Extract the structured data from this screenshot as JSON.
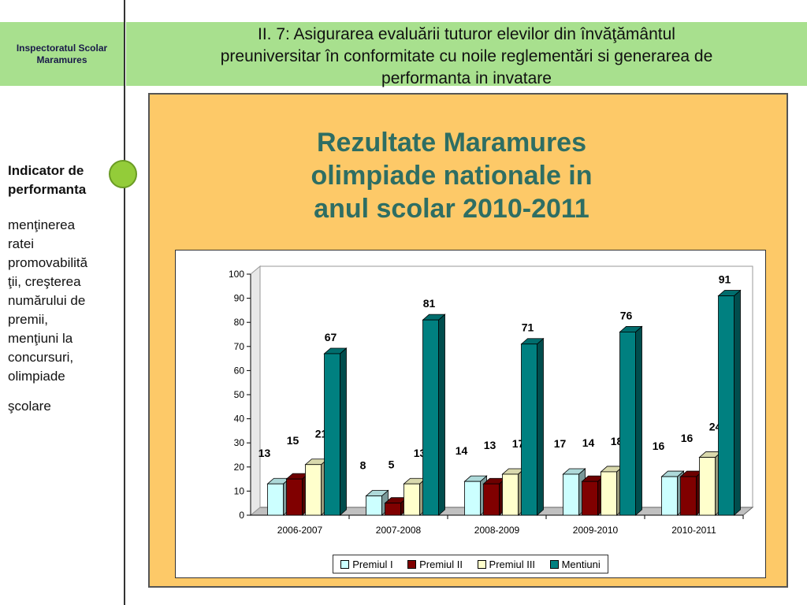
{
  "logo": {
    "line1": "Inspectoratul Scolar",
    "line2": "Maramures"
  },
  "header": {
    "line1": "II. 7: Asigurarea evaluării tuturor elevilor din învăţământul",
    "line2": "preuniversitar în conformitate cu noile reglementări si generarea de",
    "line3": "performanta in invatare"
  },
  "sidebar": {
    "heading_line1": "Indicator de",
    "heading_line2": "performanta",
    "body_lines": [
      "menţinerea",
      "ratei",
      "promovabilită",
      "ţii, creşterea",
      "numărului de",
      "premii,",
      "menţiuni la",
      "concursuri,",
      "olimpiade",
      "şcolare"
    ]
  },
  "panel_title": {
    "line1": "Rezultate Maramures",
    "line2": "olimpiade nationale in",
    "line3": "anul scolar 2010-2011"
  },
  "chart_data": {
    "type": "bar",
    "title": "",
    "categories": [
      "2006-2007",
      "2007-2008",
      "2008-2009",
      "2009-2010",
      "2010-2011"
    ],
    "series": [
      {
        "name": "Premiul I",
        "values": [
          13,
          8,
          14,
          17,
          16
        ],
        "color": "#ccffff"
      },
      {
        "name": "Premiul II",
        "values": [
          15,
          5,
          13,
          14,
          16
        ],
        "color": "#800000"
      },
      {
        "name": "Premiul III",
        "values": [
          21,
          13,
          17,
          18,
          24
        ],
        "color": "#ffffcc"
      },
      {
        "name": "Mentiuni",
        "values": [
          67,
          81,
          71,
          76,
          91
        ],
        "color": "#008080"
      }
    ],
    "ylim": [
      0,
      100
    ],
    "yticks": [
      "0",
      "10",
      "20",
      "30",
      "40",
      "50",
      "60",
      "70",
      "80",
      "90",
      "100"
    ],
    "grid": false,
    "legend": "bottom",
    "style": "3d-clustered"
  }
}
